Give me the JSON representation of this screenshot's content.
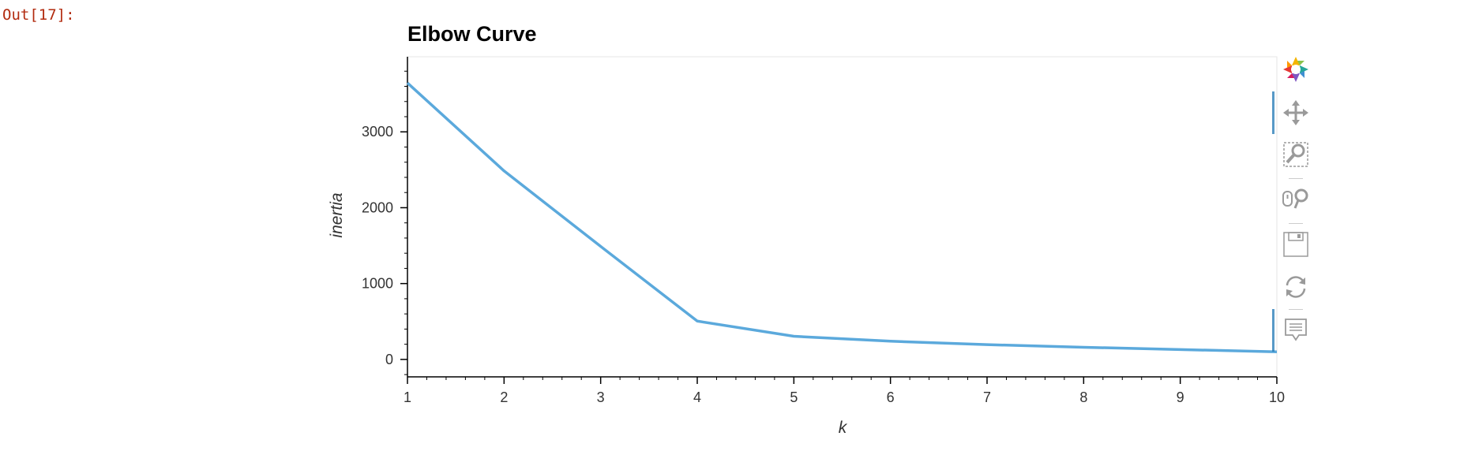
{
  "cell": {
    "out_prompt": "Out[17]:"
  },
  "chart_data": {
    "type": "line",
    "title": "Elbow Curve",
    "xlabel": "k",
    "ylabel": "inertia",
    "x": [
      1,
      2,
      3,
      4,
      5,
      6,
      7,
      8,
      9,
      10
    ],
    "series": [
      {
        "values": [
          3645,
          2485,
          1490,
          505,
          305,
          240,
          195,
          160,
          130,
          100
        ]
      }
    ],
    "xlim": [
      1,
      10
    ],
    "ylim": [
      -230,
      3990
    ],
    "x_ticks": [
      1,
      2,
      3,
      4,
      5,
      6,
      7,
      8,
      9,
      10
    ],
    "y_ticks": [
      0,
      1000,
      2000,
      3000
    ],
    "line_color": "#5ba9dc",
    "grid": false
  },
  "toolbar": {
    "tools": [
      {
        "name": "bokeh-logo-icon",
        "active": false
      },
      {
        "name": "pan-icon",
        "active": true
      },
      {
        "name": "box-zoom-icon",
        "active": false
      },
      {
        "name": "wheel-zoom-icon",
        "active": false
      },
      {
        "name": "save-icon",
        "active": false
      },
      {
        "name": "reset-icon",
        "active": false
      },
      {
        "name": "hover-icon",
        "active": true
      }
    ]
  }
}
